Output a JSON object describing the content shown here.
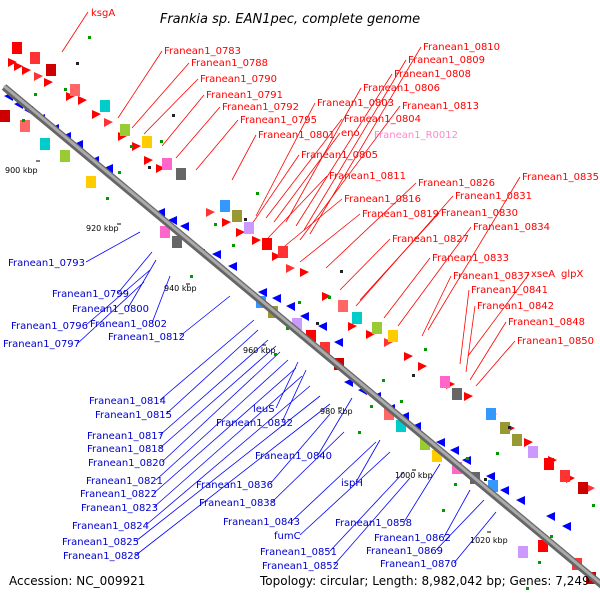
{
  "title": "Frankia sp. EAN1pec, complete genome",
  "footer": {
    "accession": "Accession: NC_009921",
    "info": "Topology: circular; Length: 8,982,042 bp; Genes: 7,249"
  },
  "colors": {
    "forward": "#ff0000",
    "reverse": "#0000ff",
    "rna": "#ff88cc",
    "backbone": "#888888",
    "tick": "#009900"
  },
  "ticks": [
    "900 kbp",
    "920 kbp",
    "940 kbp",
    "960 kbp",
    "980 kbp",
    "1000 kbp",
    "1020 kbp"
  ],
  "forward_labels": [
    "ksgA",
    "Franean1_0783",
    "Franean1_0788",
    "Franean1_0790",
    "Franean1_0791",
    "Franean1_0792",
    "Franean1_0795",
    "Franean1_0801",
    "Franean1_0803",
    "eno",
    "Franean1_0804",
    "Franean1_0805",
    "Franean1_0806",
    "Franean1_0808",
    "Franean1_0809",
    "Franean1_0810",
    "Franean1_0811",
    "Franean1_0813",
    "Franean1_R0012",
    "Franean1_0816",
    "Franean1_0819",
    "Franean1_0826",
    "Franean1_0827",
    "Franean1_0830",
    "Franean1_0831",
    "Franean1_0833",
    "Franean1_0834",
    "Franean1_0835",
    "Franean1_0837",
    "xseA",
    "glpX",
    "Franean1_0841",
    "Franean1_0842",
    "Franean1_0848",
    "Franean1_0850"
  ],
  "reverse_labels": [
    "Franean1_0793",
    "Franean1_0799",
    "Franean1_0800",
    "Franean1_0796",
    "Franean1_0802",
    "Franean1_0797",
    "Franean1_0812",
    "Franean1_0814",
    "Franean1_0815",
    "leuS",
    "Franean1_0832",
    "Franean1_0817",
    "Franean1_0818",
    "Franean1_0820",
    "Franean1_0840",
    "Franean1_0821",
    "Franean1_0836",
    "ispH",
    "Franean1_0822",
    "Franean1_0838",
    "Franean1_0823",
    "Franean1_0843",
    "Franean1_0858",
    "Franean1_0824",
    "fumC",
    "Franean1_0862",
    "Franean1_0825",
    "Franean1_0851",
    "Franean1_0869",
    "Franean1_0828",
    "Franean1_0852",
    "Franean1_0870"
  ]
}
